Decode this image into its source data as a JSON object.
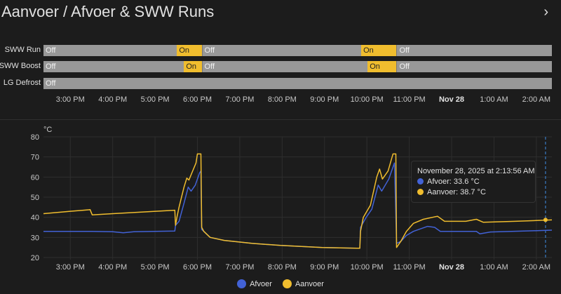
{
  "header": {
    "title": "Aanvoer / Afvoer & SWW Runs",
    "more_icon": "chevron-right"
  },
  "timeline": {
    "start": "2025-11-27T14:22",
    "end": "2025-11-28T02:22",
    "on_color": "#f0bd2e",
    "off_color": "#989898",
    "rows": [
      {
        "label": "SWW Run",
        "segments": [
          {
            "state": "Off",
            "from": "2025-11-27T14:22",
            "to": "2025-11-27T17:31"
          },
          {
            "state": "On",
            "from": "2025-11-27T17:31",
            "to": "2025-11-27T18:06"
          },
          {
            "state": "Off",
            "from": "2025-11-27T18:06",
            "to": "2025-11-27T21:52"
          },
          {
            "state": "On",
            "from": "2025-11-27T21:52",
            "to": "2025-11-27T22:42"
          },
          {
            "state": "Off",
            "from": "2025-11-27T22:42",
            "to": "2025-11-28T02:22"
          }
        ]
      },
      {
        "label": "SWW Boost",
        "segments": [
          {
            "state": "Off",
            "from": "2025-11-27T14:22",
            "to": "2025-11-27T17:41"
          },
          {
            "state": "On",
            "from": "2025-11-27T17:41",
            "to": "2025-11-27T18:06"
          },
          {
            "state": "Off",
            "from": "2025-11-27T18:06",
            "to": "2025-11-27T22:01"
          },
          {
            "state": "On",
            "from": "2025-11-27T22:01",
            "to": "2025-11-27T22:42"
          },
          {
            "state": "Off",
            "from": "2025-11-27T22:42",
            "to": "2025-11-28T02:22"
          }
        ]
      },
      {
        "label": "LG Defrost",
        "segments": [
          {
            "state": "Off",
            "from": "2025-11-27T14:22",
            "to": "2025-11-28T02:22"
          }
        ]
      }
    ]
  },
  "x_ticks": [
    {
      "label": "3:00 PM",
      "t": "2025-11-27T15:00"
    },
    {
      "label": "4:00 PM",
      "t": "2025-11-27T16:00"
    },
    {
      "label": "5:00 PM",
      "t": "2025-11-27T17:00"
    },
    {
      "label": "6:00 PM",
      "t": "2025-11-27T18:00"
    },
    {
      "label": "7:00 PM",
      "t": "2025-11-27T19:00"
    },
    {
      "label": "8:00 PM",
      "t": "2025-11-27T20:00"
    },
    {
      "label": "9:00 PM",
      "t": "2025-11-27T21:00"
    },
    {
      "label": "10:00 PM",
      "t": "2025-11-27T22:00"
    },
    {
      "label": "11:00 PM",
      "t": "2025-11-27T23:00"
    },
    {
      "label": "Nov 28",
      "t": "2025-11-28T00:00",
      "bold": true
    },
    {
      "label": "1:00 AM",
      "t": "2025-11-28T01:00"
    },
    {
      "label": "2:00 AM",
      "t": "2025-11-28T02:00"
    }
  ],
  "chart_data": {
    "type": "line",
    "ylabel": "°C",
    "ylim": [
      20,
      80
    ],
    "yticks": [
      "20",
      "30",
      "40",
      "50",
      "60",
      "70",
      "80"
    ],
    "xlim": [
      "2025-11-27T14:22",
      "2025-11-28T02:22"
    ],
    "grid": true,
    "legend_position": "bottom",
    "cursor_time": "2025-11-28T02:13",
    "series": [
      {
        "name": "Afvoer",
        "color": "#4262d6",
        "points": [
          [
            "2025-11-27T14:22",
            33
          ],
          [
            "2025-11-27T15:30",
            33
          ],
          [
            "2025-11-27T16:00",
            32.8
          ],
          [
            "2025-11-27T16:15",
            32.3
          ],
          [
            "2025-11-27T16:30",
            32.8
          ],
          [
            "2025-11-27T17:28",
            33.2
          ],
          [
            "2025-11-27T17:29",
            36
          ],
          [
            "2025-11-27T17:34",
            38
          ],
          [
            "2025-11-27T17:41",
            47
          ],
          [
            "2025-11-27T17:47",
            55
          ],
          [
            "2025-11-27T17:51",
            53
          ],
          [
            "2025-11-27T17:57",
            56
          ],
          [
            "2025-11-27T18:03",
            62
          ],
          [
            "2025-11-27T18:05",
            63
          ],
          [
            "2025-11-27T18:06",
            34
          ],
          [
            "2025-11-27T18:09",
            33
          ],
          [
            "2025-11-27T18:18",
            30
          ],
          [
            "2025-11-27T18:38",
            28.5
          ],
          [
            "2025-11-27T19:18",
            27
          ],
          [
            "2025-11-27T19:58",
            26
          ],
          [
            "2025-11-27T20:57",
            25
          ],
          [
            "2025-11-27T21:50",
            24.6
          ],
          [
            "2025-11-27T21:51",
            35
          ],
          [
            "2025-11-27T21:59",
            40
          ],
          [
            "2025-11-27T22:07",
            44
          ],
          [
            "2025-11-27T22:16",
            56
          ],
          [
            "2025-11-27T22:21",
            53
          ],
          [
            "2025-11-27T22:31",
            59
          ],
          [
            "2025-11-27T22:39",
            67
          ],
          [
            "2025-11-27T22:42",
            27
          ],
          [
            "2025-11-27T22:48",
            28
          ],
          [
            "2025-11-27T22:56",
            31
          ],
          [
            "2025-11-27T23:06",
            33
          ],
          [
            "2025-11-27T23:26",
            35.5
          ],
          [
            "2025-11-27T23:36",
            35
          ],
          [
            "2025-11-27T23:44",
            33
          ],
          [
            "2025-11-28T00:35",
            33
          ],
          [
            "2025-11-28T00:40",
            31.8
          ],
          [
            "2025-11-28T00:55",
            32.7
          ],
          [
            "2025-11-28T01:55",
            33.3
          ],
          [
            "2025-11-28T02:22",
            33.6
          ]
        ]
      },
      {
        "name": "Aanvoer",
        "color": "#f0bd2e",
        "points": [
          [
            "2025-11-27T14:22",
            41.8
          ],
          [
            "2025-11-27T15:00",
            43
          ],
          [
            "2025-11-27T15:28",
            43.8
          ],
          [
            "2025-11-27T15:31",
            41.2
          ],
          [
            "2025-11-27T16:00",
            41.8
          ],
          [
            "2025-11-27T17:28",
            43.5
          ],
          [
            "2025-11-27T17:29",
            36
          ],
          [
            "2025-11-27T17:31",
            40
          ],
          [
            "2025-11-27T17:34",
            45
          ],
          [
            "2025-11-27T17:41",
            55
          ],
          [
            "2025-11-27T17:45",
            59.5
          ],
          [
            "2025-11-27T17:48",
            58.5
          ],
          [
            "2025-11-27T17:52",
            62
          ],
          [
            "2025-11-27T17:58",
            67
          ],
          [
            "2025-11-27T18:00",
            71.5
          ],
          [
            "2025-11-27T18:05",
            71.5
          ],
          [
            "2025-11-27T18:06",
            35
          ],
          [
            "2025-11-27T18:09",
            33
          ],
          [
            "2025-11-27T18:18",
            30
          ],
          [
            "2025-11-27T18:38",
            28.5
          ],
          [
            "2025-11-27T19:18",
            27
          ],
          [
            "2025-11-27T19:58",
            26
          ],
          [
            "2025-11-27T20:57",
            25
          ],
          [
            "2025-11-27T21:50",
            24.6
          ],
          [
            "2025-11-27T21:51",
            33
          ],
          [
            "2025-11-27T21:55",
            40
          ],
          [
            "2025-11-27T22:05",
            46
          ],
          [
            "2025-11-27T22:14",
            60
          ],
          [
            "2025-11-27T22:18",
            64
          ],
          [
            "2025-11-27T22:22",
            59
          ],
          [
            "2025-11-27T22:30",
            63
          ],
          [
            "2025-11-27T22:37",
            71.5
          ],
          [
            "2025-11-27T22:41",
            71.5
          ],
          [
            "2025-11-27T22:42",
            25
          ],
          [
            "2025-11-27T22:48",
            28
          ],
          [
            "2025-11-27T22:56",
            33
          ],
          [
            "2025-11-27T23:06",
            37
          ],
          [
            "2025-11-27T23:20",
            39
          ],
          [
            "2025-11-27T23:40",
            40.5
          ],
          [
            "2025-11-27T23:50",
            38
          ],
          [
            "2025-11-28T00:20",
            38
          ],
          [
            "2025-11-28T00:35",
            39
          ],
          [
            "2025-11-28T00:45",
            37.5
          ],
          [
            "2025-11-28T01:30",
            38
          ],
          [
            "2025-11-28T02:22",
            38.7
          ]
        ]
      }
    ]
  },
  "tooltip": {
    "title": "November 28, 2025 at 2:13:56 AM",
    "lines": [
      "Afvoer: 33.6 °C",
      "Aanvoer: 38.7 °C"
    ]
  },
  "legend": [
    "Afvoer",
    "Aanvoer"
  ]
}
